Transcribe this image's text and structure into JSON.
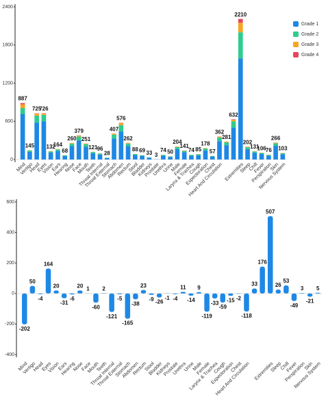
{
  "chart_data": [
    {
      "type": "bar",
      "stacked": true,
      "ylim": [
        0,
        2400
      ],
      "yticks": [
        0,
        600,
        1200,
        1800,
        2400
      ],
      "legend": "top-right",
      "categories": [
        "Mind",
        "Vertigo",
        "Head",
        "Eyes",
        "Vision",
        "Ears",
        "Hearing",
        "Nose",
        "Face",
        "Mouth",
        "Teeth",
        "Throat Internal",
        "Throat External",
        "Stomach",
        "Abdomen",
        "Rectum",
        "Stool",
        "Bladder",
        "Kidneys",
        "Prostate",
        "Urethra",
        "Urine",
        "Male",
        "Female",
        "Larynx & Trachea",
        "Cough",
        "Expectoration",
        "Chest",
        "Heart And Circulation",
        null,
        null,
        "Extremities",
        "Sleep",
        "Chill",
        "Fever",
        "Perspiration",
        "Skin",
        "Nervous System"
      ],
      "totals": [
        887,
        145,
        725,
        726,
        132,
        164,
        68,
        260,
        379,
        251,
        121,
        96,
        28,
        407,
        576,
        262,
        88,
        69,
        33,
        3,
        74,
        50,
        204,
        141,
        74,
        85,
        178,
        57,
        362,
        281,
        632,
        2210,
        202,
        131,
        106,
        76,
        266,
        103
      ],
      "series": [
        {
          "name": "Grade 1",
          "color": "#1e88e5",
          "values": [
            717,
            120,
            580,
            601,
            107,
            134,
            56,
            210,
            300,
            200,
            97,
            78,
            22,
            330,
            440,
            210,
            70,
            57,
            27,
            3,
            60,
            40,
            165,
            115,
            60,
            68,
            142,
            46,
            288,
            225,
            500,
            1590,
            163,
            106,
            86,
            61,
            215,
            83
          ]
        },
        {
          "name": "Grade 2",
          "color": "#2ecc8e",
          "values": [
            90,
            20,
            110,
            100,
            20,
            25,
            10,
            40,
            60,
            40,
            20,
            15,
            5,
            60,
            100,
            40,
            15,
            10,
            5,
            0,
            12,
            8,
            30,
            20,
            12,
            14,
            30,
            9,
            60,
            45,
            100,
            410,
            30,
            20,
            16,
            12,
            40,
            16
          ]
        },
        {
          "name": "Grade 3",
          "color": "#f5a623",
          "values": [
            60,
            5,
            30,
            20,
            5,
            5,
            2,
            10,
            15,
            10,
            4,
            3,
            1,
            15,
            30,
            10,
            3,
            2,
            1,
            0,
            2,
            2,
            8,
            5,
            2,
            3,
            6,
            2,
            12,
            10,
            25,
            150,
            8,
            5,
            4,
            3,
            10,
            4
          ]
        },
        {
          "name": "Grade 4",
          "color": "#e8455a",
          "values": [
            20,
            0,
            5,
            5,
            0,
            0,
            0,
            0,
            4,
            1,
            0,
            0,
            0,
            2,
            6,
            2,
            0,
            0,
            0,
            0,
            0,
            0,
            1,
            1,
            0,
            0,
            0,
            0,
            2,
            1,
            7,
            60,
            1,
            0,
            0,
            0,
            1,
            0
          ]
        }
      ]
    },
    {
      "type": "bar",
      "ylim": [
        -400,
        600
      ],
      "yticks": [
        -400,
        -200,
        0,
        200,
        400,
        600
      ],
      "color": "#1e88e5",
      "categories": [
        "Mind",
        "Vertigo",
        "Head",
        "Eyes",
        "Vision",
        "Ears",
        "Hearing",
        "Nose",
        "Face",
        "Mouth",
        "Teeth",
        "Throat Internal",
        "Throat External",
        "Stomach",
        "Abdomen",
        "Rectum",
        "Stool",
        "Bladder",
        "Kidneys",
        "Prostate",
        "Urethra",
        "Urine",
        "Male",
        "Female",
        "Larynx & Trachea",
        "Cough",
        "Expectoration",
        "Chest",
        "Heart And Circulation",
        null,
        null,
        "Extremities",
        "Sleep",
        "Chill",
        "Fever",
        "Perspiration",
        "Skin",
        "Nervous System"
      ],
      "values": [
        -202,
        50,
        -4,
        164,
        20,
        -31,
        -6,
        20,
        1,
        -60,
        2,
        -121,
        -5,
        -165,
        -38,
        23,
        -9,
        -26,
        -1,
        -4,
        11,
        -14,
        9,
        -119,
        -33,
        -59,
        -15,
        -2,
        -118,
        33,
        176,
        507,
        26,
        53,
        -49,
        3,
        -21,
        5
      ]
    }
  ]
}
